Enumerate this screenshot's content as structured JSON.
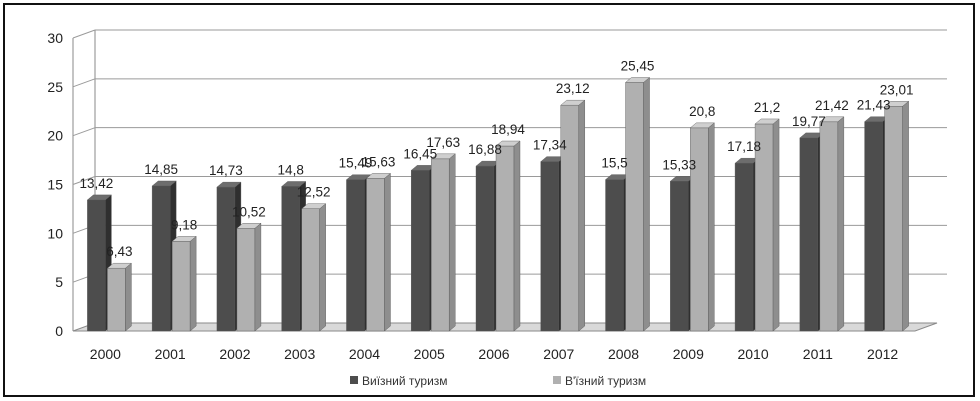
{
  "chart_data": {
    "type": "bar",
    "style": "3d-clustered-column",
    "categories": [
      "2000",
      "2001",
      "2002",
      "2003",
      "2004",
      "2005",
      "2006",
      "2007",
      "2008",
      "2009",
      "2010",
      "2011",
      "2012"
    ],
    "series": [
      {
        "name": "Виїзний туризм",
        "color": "#4d4d4d",
        "values": [
          13.42,
          14.85,
          14.73,
          14.8,
          15.49,
          16.45,
          16.88,
          17.34,
          15.5,
          15.33,
          17.18,
          19.77,
          21.43
        ],
        "labels": [
          "13,42",
          "14,85",
          "14,73",
          "14,8",
          "15,49",
          "16,45",
          "16,88",
          "17,34",
          "15,5",
          "15,33",
          "17,18",
          "19,77",
          "21,43"
        ]
      },
      {
        "name": "В'їзний туризм",
        "color": "#b0b0b0",
        "values": [
          6.43,
          9.18,
          10.52,
          12.52,
          15.63,
          17.63,
          18.94,
          23.12,
          25.45,
          20.8,
          21.2,
          21.42,
          23.01
        ],
        "labels": [
          "6,43",
          "9,18",
          "10,52",
          "12,52",
          "15,63",
          "17,63",
          "18,94",
          "23,12",
          "25,45",
          "20,8",
          "21,2",
          "21,42",
          "23,01"
        ]
      }
    ],
    "ylim": [
      0,
      30
    ],
    "yticks": [
      "0",
      "5",
      "10",
      "15",
      "20",
      "25",
      "30"
    ],
    "grid": true,
    "legend": "bottom"
  }
}
